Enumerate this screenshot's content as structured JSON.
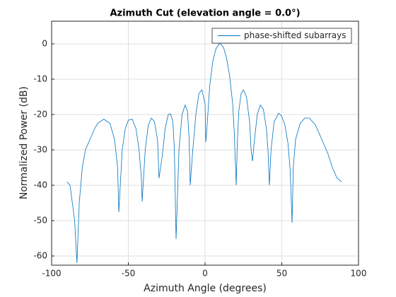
{
  "chart_data": {
    "type": "line",
    "title": "Azimuth Cut (elevation angle = 0.0°)",
    "x_label": "Azimuth Angle (degrees)",
    "y_label": "Normalized Power (dB)",
    "xlim": [
      -100,
      100
    ],
    "xticks": [
      -100,
      -50,
      0,
      50,
      100
    ],
    "ylim": [
      -62.6,
      6.4
    ],
    "yticks": [
      -60,
      -50,
      -40,
      -30,
      -20,
      -10,
      0
    ],
    "grid": true,
    "legend": "top-right",
    "x": [
      -90,
      -88,
      -85,
      -83.5,
      -82,
      -80,
      -78,
      -75,
      -72,
      -70,
      -66,
      -62,
      -59,
      -57,
      -56.2,
      -54,
      -52,
      -50,
      -47.5,
      -45,
      -43,
      -41.5,
      -41,
      -39,
      -37,
      -35,
      -33,
      -31,
      -30,
      -28,
      -26,
      -24,
      -22.5,
      -21,
      -20,
      -18.9,
      -17,
      -15,
      -13,
      -11.5,
      -10.5,
      -10,
      -9.7,
      -8,
      -6,
      -4,
      -2,
      0,
      0.5,
      1.5,
      3,
      5,
      7,
      9,
      10,
      12,
      14,
      16,
      18,
      19,
      20.3,
      21,
      22,
      23.5,
      25,
      27,
      29,
      30,
      30.9,
      32,
      34,
      36,
      38,
      40,
      41,
      41.9,
      43,
      45,
      48,
      50,
      52,
      54,
      55.5,
      56.7,
      57.5,
      59,
      62,
      65,
      68,
      72,
      76,
      80,
      83,
      86,
      89
    ],
    "series": [
      {
        "name": "phase-shifted subarrays",
        "color": "#0072bd",
        "values": [
          -39,
          -40,
          -50,
          -62,
          -45,
          -35,
          -30,
          -27,
          -24,
          -22.5,
          -21.3,
          -22.5,
          -27,
          -35,
          -47.6,
          -30,
          -24,
          -21.6,
          -21.3,
          -24,
          -30,
          -38,
          -44.6,
          -30,
          -23,
          -21,
          -22,
          -27,
          -38,
          -32,
          -24,
          -20,
          -19.8,
          -22,
          -30,
          -55.2,
          -30,
          -20,
          -17.3,
          -19,
          -26,
          -33,
          -40,
          -30,
          -20,
          -14,
          -13,
          -17,
          -27.8,
          -22,
          -12,
          -5,
          -1.5,
          -0.1,
          0,
          -1,
          -4,
          -9,
          -17,
          -25,
          -40,
          -28,
          -19,
          -14,
          -13,
          -15,
          -22,
          -30,
          -33.2,
          -28,
          -20,
          -17.3,
          -18.5,
          -24,
          -30,
          -40,
          -30,
          -22,
          -19.6,
          -20.5,
          -23,
          -28,
          -36,
          -50.6,
          -35,
          -27,
          -22.5,
          -21,
          -21,
          -23,
          -27,
          -31,
          -35,
          -38,
          -39
        ]
      }
    ]
  }
}
